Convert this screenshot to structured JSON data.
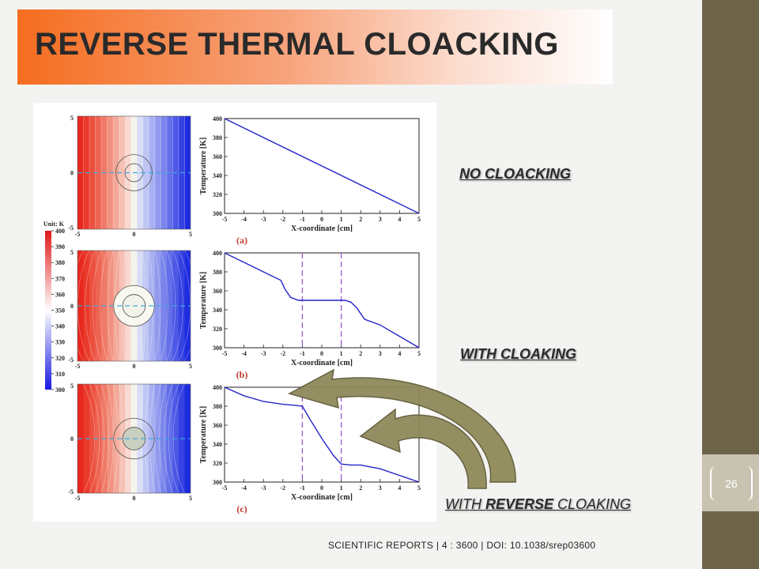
{
  "slide": {
    "title": "REVERSE THERMAL CLOACKING",
    "page_number": "26",
    "citation": "SCIENTIFIC REPORTS | 4 : 3600 | DOI: 10.1038/srep03600",
    "labels": {
      "no_cloaking": "NO CLOACKING",
      "with_cloaking": "WITH CLOAKING",
      "with_reverse_prefix": "WITH ",
      "with_reverse_bold": "REVERSE",
      "with_reverse_suffix": " CLOAKING"
    },
    "colors": {
      "title_orange": "#f56d1f",
      "band": "#6e6549",
      "tab": "#c8c3b0",
      "arrow": "#8f8a5a",
      "line": "#2424c8",
      "dashed": "#9b59d0",
      "panel_label": "#c0392b"
    }
  },
  "colorbar": {
    "unit_label": "Unit: K",
    "ticks": [
      400,
      390,
      380,
      370,
      360,
      350,
      340,
      330,
      320,
      310,
      300
    ],
    "range": [
      300,
      400
    ],
    "colors": [
      "#e01818",
      "#ffffff",
      "#1818e0"
    ]
  },
  "chart_data": [
    {
      "type": "line",
      "panel_label": "(a)",
      "xlabel": "X-coordinate [cm]",
      "ylabel": "Temperature [K]",
      "xlim": [
        -5,
        5
      ],
      "ylim": [
        300,
        400
      ],
      "xticks": [
        -5,
        -4,
        -3,
        -2,
        -1,
        0,
        1,
        2,
        3,
        4,
        5
      ],
      "yticks": [
        300,
        320,
        340,
        360,
        380,
        400
      ],
      "x": [
        -5,
        5
      ],
      "y": [
        400,
        300
      ],
      "dashed_x": []
    },
    {
      "type": "line",
      "panel_label": "(b)",
      "xlabel": "X-coordinate [cm]",
      "ylabel": "Temperature [K]",
      "xlim": [
        -5,
        5
      ],
      "ylim": [
        300,
        400
      ],
      "xticks": [
        -5,
        -4,
        -3,
        -2,
        -1,
        0,
        1,
        2,
        3,
        4,
        5
      ],
      "yticks": [
        300,
        320,
        340,
        360,
        380,
        400
      ],
      "x": [
        -5,
        -4,
        -3,
        -2.1,
        -1.9,
        -1.6,
        -1.2,
        1.2,
        1.5,
        1.8,
        2.2,
        3,
        4,
        5
      ],
      "y": [
        400,
        390,
        380,
        371,
        362,
        353,
        350,
        350,
        348,
        342,
        330,
        324,
        312,
        300
      ],
      "dashed_x": [
        -1,
        1
      ]
    },
    {
      "type": "line",
      "panel_label": "(c)",
      "xlabel": "X-coordinate [cm]",
      "ylabel": "Temperature [K]",
      "xlim": [
        -5,
        5
      ],
      "ylim": [
        300,
        400
      ],
      "xticks": [
        -5,
        -4,
        -3,
        -2,
        -1,
        0,
        1,
        2,
        3,
        4,
        5
      ],
      "yticks": [
        300,
        320,
        340,
        360,
        380,
        400
      ],
      "x": [
        -5,
        -4,
        -3,
        -2,
        -1.4,
        -1,
        -0.6,
        0,
        0.6,
        1,
        1.5,
        2,
        3,
        4,
        5
      ],
      "y": [
        400,
        391,
        385,
        382,
        381,
        380,
        366,
        346,
        328,
        319,
        318,
        318,
        314,
        307,
        300
      ],
      "dashed_x": [
        -1,
        1
      ]
    }
  ],
  "maps": [
    {
      "name": "no-cloaking",
      "ticks": [
        5,
        0,
        -5
      ],
      "xticks": [
        -5,
        0,
        5
      ],
      "stripes": [
        "#e8271f",
        "#ea3a2c",
        "#ec4f3e",
        "#ee6452",
        "#f07a68",
        "#f2917f",
        "#f4a898",
        "#f6c0b3",
        "#f8d8d0",
        "#f3f3ea",
        "#d8dcf6",
        "#c0c6f4",
        "#a8b0f1",
        "#919aee",
        "#7a84eb",
        "#636ee8",
        "#4c58e5",
        "#3542e2",
        "#1e2cdf"
      ],
      "circles": [
        {
          "r": 0.8,
          "fill": "none"
        },
        {
          "r": 1.6,
          "fill": "none"
        }
      ]
    },
    {
      "name": "with-cloaking",
      "ticks": [
        5,
        0,
        -5
      ],
      "xticks": [
        -5,
        0,
        5
      ],
      "stripes": [
        "#e8271f",
        "#ea3a2c",
        "#ec4f3e",
        "#ee6452",
        "#f07a68",
        "#f2917f",
        "#f4a898",
        "#f6c0b3",
        "#f8d8d0",
        "#f3f3ea",
        "#d8dcf6",
        "#c0c6f4",
        "#a8b0f1",
        "#919aee",
        "#7a84eb",
        "#636ee8",
        "#4c58e5",
        "#3542e2",
        "#1e2cdf"
      ],
      "circles": [
        {
          "r": 1.0,
          "fill": "none"
        },
        {
          "r": 1.8,
          "fill": "#f8f8f0"
        }
      ]
    },
    {
      "name": "with-reverse-cloaking",
      "ticks": [
        5,
        0,
        -5
      ],
      "xticks": [
        -5,
        0,
        5
      ],
      "stripes": [
        "#e8271f",
        "#ea3a2c",
        "#ec4f3e",
        "#ee6452",
        "#f07a68",
        "#f2917f",
        "#f4a898",
        "#f6c0b3",
        "#f8d8d0",
        "#f3f3ea",
        "#d8dcf6",
        "#c0c6f4",
        "#a8b0f1",
        "#919aee",
        "#7a84eb",
        "#636ee8",
        "#4c58e5",
        "#3542e2",
        "#1e2cdf"
      ],
      "circles": [
        {
          "r": 1.0,
          "fill": "#d8d8c8"
        },
        {
          "r": 1.8,
          "fill": "none"
        }
      ]
    }
  ]
}
